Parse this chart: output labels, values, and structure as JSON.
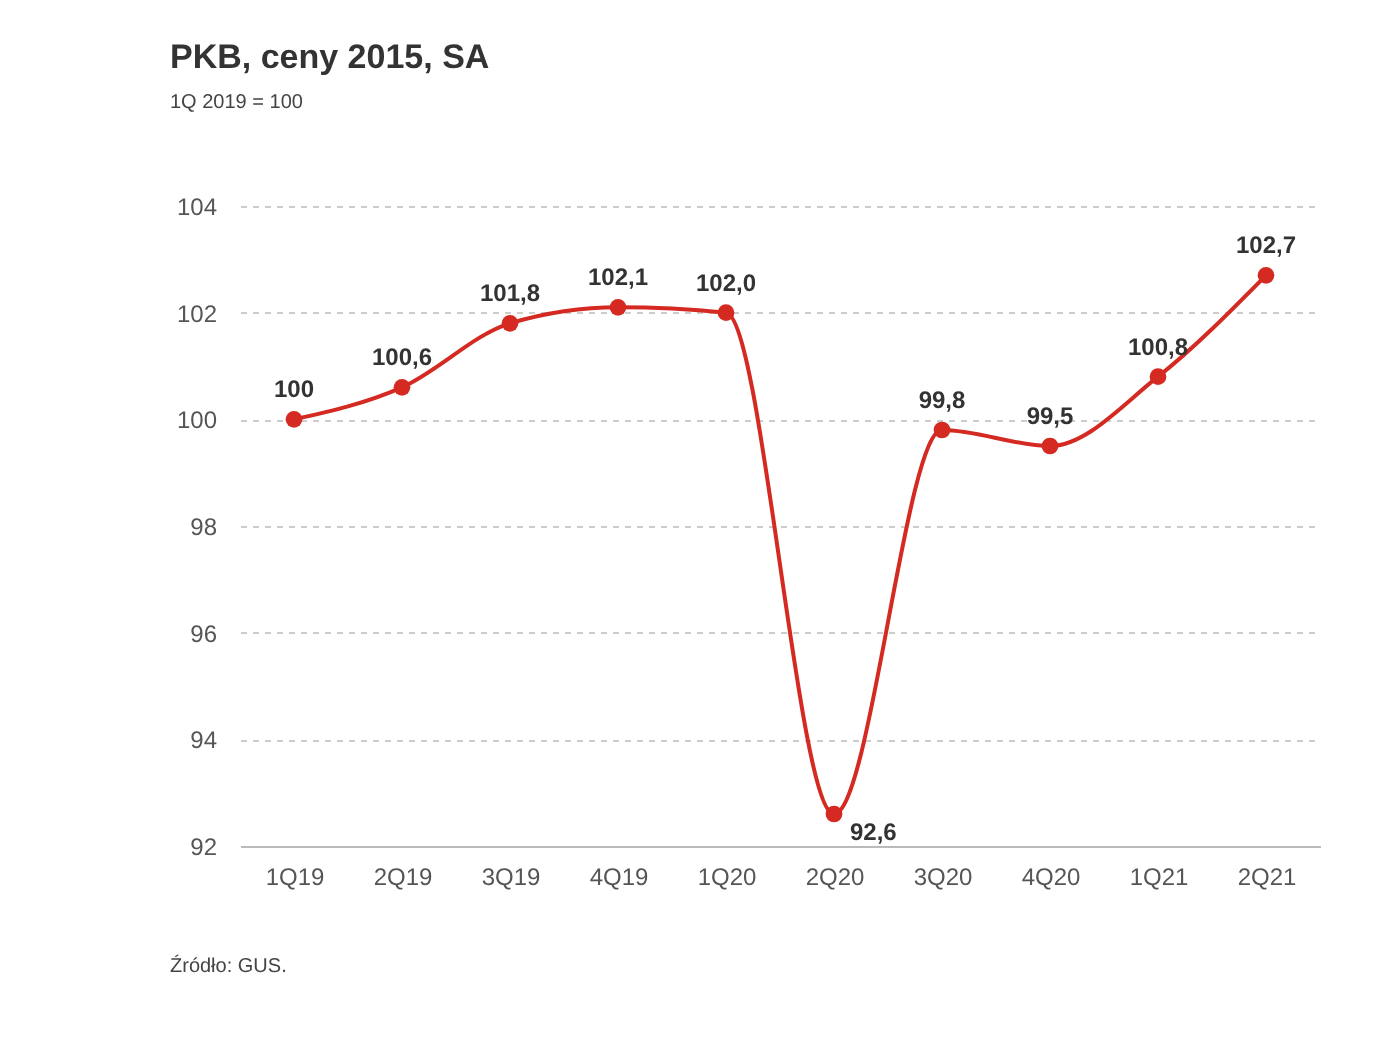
{
  "chart_data": {
    "type": "line",
    "title": "PKB, ceny 2015, SA",
    "subtitle": "1Q 2019 = 100",
    "categories": [
      "1Q19",
      "2Q19",
      "3Q19",
      "4Q19",
      "1Q20",
      "2Q20",
      "3Q20",
      "4Q20",
      "1Q21",
      "2Q21"
    ],
    "series": [
      {
        "color": "#d42a22",
        "values": [
          100,
          100.6,
          101.8,
          102.1,
          102.0,
          92.6,
          99.8,
          99.5,
          100.8,
          102.7
        ],
        "value_labels": [
          "100",
          "100,6",
          "101,8",
          "102,1",
          "102,0",
          "92,6",
          "99,8",
          "99,5",
          "100,8",
          "102,7"
        ]
      }
    ],
    "ylim": [
      92,
      104
    ],
    "yticks": [
      92,
      94,
      96,
      98,
      100,
      102,
      104
    ],
    "grid": "y",
    "marker": "circle",
    "line_style": "solid",
    "annotations": [
      "Źródło: GUS."
    ]
  }
}
